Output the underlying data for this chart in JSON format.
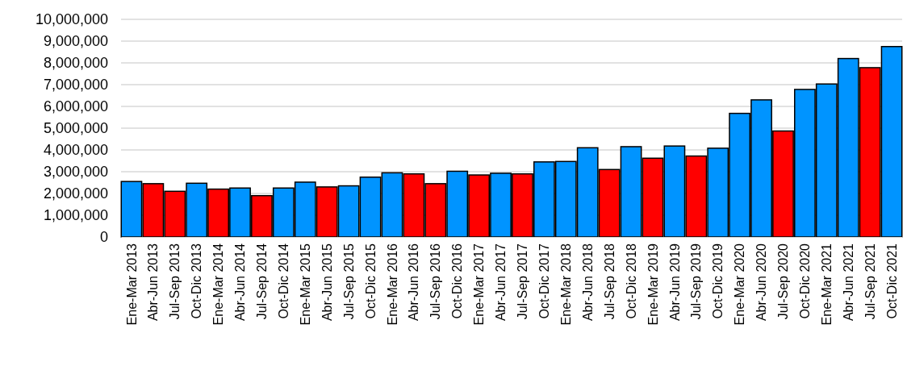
{
  "chart_data": {
    "type": "bar",
    "categories": [
      "Ene-Mar 2013",
      "Abr-Jun 2013",
      "Jul-Sep 2013",
      "Oct-Dic 2013",
      "Ene-Mar 2014",
      "Abr-Jun 2014",
      "Jul-Sep 2014",
      "Oct-Dic 2014",
      "Ene-Mar 2015",
      "Abr-Jun 2015",
      "Jul-Sep 2015",
      "Oct-Dic 2015",
      "Ene-Mar 2016",
      "Abr-Jun 2016",
      "Jul-Sep 2016",
      "Oct-Dic 2016",
      "Ene-Mar 2017",
      "Abr-Jun 2017",
      "Jul-Sep 2017",
      "Oct-Dic 2017",
      "Ene-Mar 2018",
      "Abr-Jun 2018",
      "Jul-Sep 2018",
      "Oct-Dic 2018",
      "Ene-Mar 2019",
      "Abr-Jun 2019",
      "Jul-Sep 2019",
      "Oct-Dic 2019",
      "Ene-Mar 2020",
      "Abr-Jun 2020",
      "Jul-Sep 2020",
      "Oct-Dic 2020",
      "Ene-Mar 2021",
      "Abr-Jun 2021",
      "Jul-Sep 2021",
      "Oct-Dic 2021"
    ],
    "values": [
      2550000,
      2450000,
      2100000,
      2470000,
      2200000,
      2250000,
      1900000,
      2250000,
      2520000,
      2300000,
      2350000,
      2750000,
      2950000,
      2900000,
      2450000,
      3020000,
      2850000,
      2930000,
      2900000,
      3450000,
      3470000,
      4100000,
      3100000,
      4150000,
      3620000,
      4180000,
      3720000,
      4080000,
      5680000,
      6300000,
      4870000,
      6780000,
      7030000,
      8200000,
      7780000,
      8750000
    ],
    "colors": [
      "#0094ff",
      "#ff0000",
      "#ff0000",
      "#0094ff",
      "#ff0000",
      "#0094ff",
      "#ff0000",
      "#0094ff",
      "#0094ff",
      "#ff0000",
      "#0094ff",
      "#0094ff",
      "#0094ff",
      "#ff0000",
      "#ff0000",
      "#0094ff",
      "#ff0000",
      "#0094ff",
      "#ff0000",
      "#0094ff",
      "#0094ff",
      "#0094ff",
      "#ff0000",
      "#0094ff",
      "#ff0000",
      "#0094ff",
      "#ff0000",
      "#0094ff",
      "#0094ff",
      "#0094ff",
      "#ff0000",
      "#0094ff",
      "#0094ff",
      "#0094ff",
      "#ff0000",
      "#0094ff"
    ],
    "ylim": [
      0,
      10000000
    ],
    "yticks": [
      {
        "value": 0,
        "label": "0"
      },
      {
        "value": 1000000,
        "label": "1,000,000"
      },
      {
        "value": 2000000,
        "label": "2,000,000"
      },
      {
        "value": 3000000,
        "label": "3,000,000"
      },
      {
        "value": 4000000,
        "label": "4,000,000"
      },
      {
        "value": 5000000,
        "label": "5,000,000"
      },
      {
        "value": 6000000,
        "label": "6,000,000"
      },
      {
        "value": 7000000,
        "label": "7,000,000"
      },
      {
        "value": 8000000,
        "label": "8,000,000"
      },
      {
        "value": 9000000,
        "label": "9,000,000"
      },
      {
        "value": 10000000,
        "label": "10,000,000"
      }
    ],
    "grid": "y"
  }
}
